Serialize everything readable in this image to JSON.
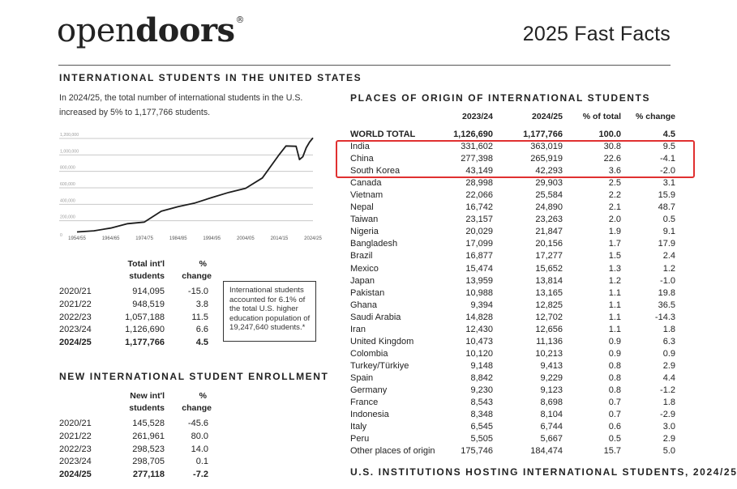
{
  "header": {
    "logo_text_light": "open",
    "logo_text_bold": "doors",
    "logo_mark": "®",
    "title": "2025 Fast Facts"
  },
  "intl_students": {
    "heading": "INTERNATIONAL STUDENTS IN THE UNITED STATES",
    "intro": "In 2024/25, the total number of international students in the U.S. increased by 5% to 1,177,766 students.",
    "chart_data": {
      "type": "line",
      "x": [
        "1954/55",
        "1959/60",
        "1964/65",
        "1969/70",
        "1974/75",
        "1979/80",
        "1984/85",
        "1989/90",
        "1994/95",
        "1999/00",
        "2004/05",
        "2009/10",
        "2014/15",
        "2016/17",
        "2019/20",
        "2020/21",
        "2021/22",
        "2022/23",
        "2023/24",
        "2024/25"
      ],
      "y": [
        34232,
        48486,
        82045,
        134959,
        154580,
        286343,
        342113,
        386851,
        452635,
        514723,
        565039,
        690923,
        974926,
        1078822,
        1075496,
        914095,
        948519,
        1057188,
        1126690,
        1177766
      ],
      "xticks": [
        "1954/55",
        "1964/65",
        "1974/75",
        "1984/85",
        "1994/95",
        "2004/05",
        "2014/15",
        "2024/25"
      ],
      "yticks": [
        "0",
        "200,000",
        "400,000",
        "600,000",
        "800,000",
        "1,000,000",
        "1,200,000"
      ],
      "ylim": [
        0,
        1200000
      ],
      "grid": true
    },
    "table": {
      "col1_header_line1": "Total int'l",
      "col1_header_line2": "students",
      "col2_header_line1": "%",
      "col2_header_line2": "change",
      "rows": [
        {
          "year": "2020/21",
          "total": "914,095",
          "change": "-15.0"
        },
        {
          "year": "2021/22",
          "total": "948,519",
          "change": "3.8"
        },
        {
          "year": "2022/23",
          "total": "1,057,188",
          "change": "11.5"
        },
        {
          "year": "2023/24",
          "total": "1,126,690",
          "change": "6.6"
        },
        {
          "year": "2024/25",
          "total": "1,177,766",
          "change": "4.5"
        }
      ]
    },
    "note": "International students accounted for 6.1% of the total U.S. higher education population of 19,247,640 students.*"
  },
  "enrollment": {
    "heading": "NEW INTERNATIONAL STUDENT ENROLLMENT",
    "table": {
      "col1_header_line1": "New int'l",
      "col1_header_line2": "students",
      "col2_header_line1": "%",
      "col2_header_line2": "change",
      "rows": [
        {
          "year": "2020/21",
          "total": "145,528",
          "change": "-45.6"
        },
        {
          "year": "2021/22",
          "total": "261,961",
          "change": "80.0"
        },
        {
          "year": "2022/23",
          "total": "298,523",
          "change": "14.0"
        },
        {
          "year": "2023/24",
          "total": "298,705",
          "change": "0.1"
        },
        {
          "year": "2024/25",
          "total": "277,118",
          "change": "-7.2"
        }
      ]
    }
  },
  "origin": {
    "heading": "PLACES OF ORIGIN OF INTERNATIONAL STUDENTS",
    "headers": [
      "2023/24",
      "2024/25",
      "% of total",
      "% change"
    ],
    "total": {
      "name": "WORLD TOTAL",
      "v1": "1,126,690",
      "v2": "1,177,766",
      "pct": "100.0",
      "chg": "4.5"
    },
    "rows": [
      {
        "name": "India",
        "v1": "331,602",
        "v2": "363,019",
        "pct": "30.8",
        "chg": "9.5"
      },
      {
        "name": "China",
        "v1": "277,398",
        "v2": "265,919",
        "pct": "22.6",
        "chg": "-4.1"
      },
      {
        "name": "South Korea",
        "v1": "43,149",
        "v2": "42,293",
        "pct": "3.6",
        "chg": "-2.0"
      },
      {
        "name": "Canada",
        "v1": "28,998",
        "v2": "29,903",
        "pct": "2.5",
        "chg": "3.1"
      },
      {
        "name": "Vietnam",
        "v1": "22,066",
        "v2": "25,584",
        "pct": "2.2",
        "chg": "15.9"
      },
      {
        "name": "Nepal",
        "v1": "16,742",
        "v2": "24,890",
        "pct": "2.1",
        "chg": "48.7"
      },
      {
        "name": "Taiwan",
        "v1": "23,157",
        "v2": "23,263",
        "pct": "2.0",
        "chg": "0.5"
      },
      {
        "name": "Nigeria",
        "v1": "20,029",
        "v2": "21,847",
        "pct": "1.9",
        "chg": "9.1"
      },
      {
        "name": "Bangladesh",
        "v1": "17,099",
        "v2": "20,156",
        "pct": "1.7",
        "chg": "17.9"
      },
      {
        "name": "Brazil",
        "v1": "16,877",
        "v2": "17,277",
        "pct": "1.5",
        "chg": "2.4"
      },
      {
        "name": "Mexico",
        "v1": "15,474",
        "v2": "15,652",
        "pct": "1.3",
        "chg": "1.2"
      },
      {
        "name": "Japan",
        "v1": "13,959",
        "v2": "13,814",
        "pct": "1.2",
        "chg": "-1.0"
      },
      {
        "name": "Pakistan",
        "v1": "10,988",
        "v2": "13,165",
        "pct": "1.1",
        "chg": "19.8"
      },
      {
        "name": "Ghana",
        "v1": "9,394",
        "v2": "12,825",
        "pct": "1.1",
        "chg": "36.5"
      },
      {
        "name": "Saudi Arabia",
        "v1": "14,828",
        "v2": "12,702",
        "pct": "1.1",
        "chg": "-14.3"
      },
      {
        "name": "Iran",
        "v1": "12,430",
        "v2": "12,656",
        "pct": "1.1",
        "chg": "1.8"
      },
      {
        "name": "United Kingdom",
        "v1": "10,473",
        "v2": "11,136",
        "pct": "0.9",
        "chg": "6.3"
      },
      {
        "name": "Colombia",
        "v1": "10,120",
        "v2": "10,213",
        "pct": "0.9",
        "chg": "0.9"
      },
      {
        "name": "Turkey/Türkiye",
        "v1": "9,148",
        "v2": "9,413",
        "pct": "0.8",
        "chg": "2.9"
      },
      {
        "name": "Spain",
        "v1": "8,842",
        "v2": "9,229",
        "pct": "0.8",
        "chg": "4.4"
      },
      {
        "name": "Germany",
        "v1": "9,230",
        "v2": "9,123",
        "pct": "0.8",
        "chg": "-1.2"
      },
      {
        "name": "France",
        "v1": "8,543",
        "v2": "8,698",
        "pct": "0.7",
        "chg": "1.8"
      },
      {
        "name": "Indonesia",
        "v1": "8,348",
        "v2": "8,104",
        "pct": "0.7",
        "chg": "-2.9"
      },
      {
        "name": "Italy",
        "v1": "6,545",
        "v2": "6,744",
        "pct": "0.6",
        "chg": "3.0"
      },
      {
        "name": "Peru",
        "v1": "5,505",
        "v2": "5,667",
        "pct": "0.5",
        "chg": "2.9"
      },
      {
        "name": "Other places of origin",
        "v1": "175,746",
        "v2": "184,474",
        "pct": "15.7",
        "chg": "5.0"
      }
    ],
    "highlight_color": "#e03030"
  },
  "institutions": {
    "heading": "U.S. INSTITUTIONS HOSTING INTERNATIONAL STUDENTS, 2024/25"
  }
}
